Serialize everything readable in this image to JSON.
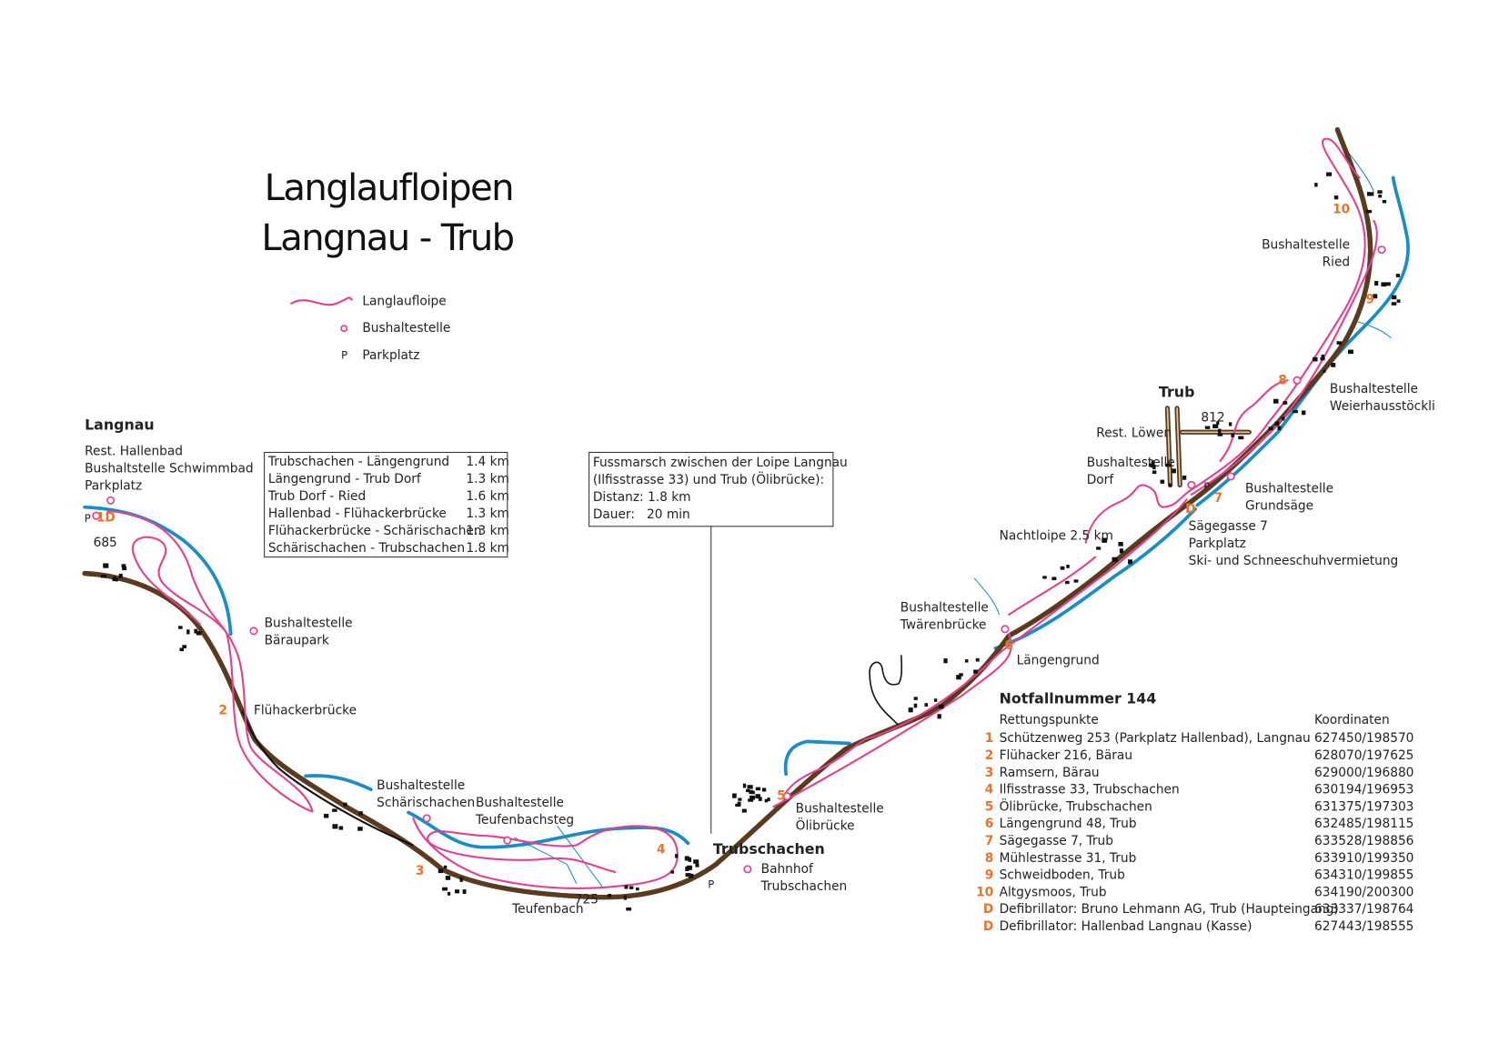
{
  "title": {
    "line1": "Langlaufloipen",
    "line2": "Langnau - Trub"
  },
  "legend": {
    "trail": "Langlaufloipe",
    "bus_stop": "Bushaltestelle",
    "parking_symbol": "P",
    "parking": "Parkplatz"
  },
  "distances": [
    [
      "Trubschachen - Längengrund",
      "1.4 km"
    ],
    [
      "Längengrund - Trub Dorf",
      "1.3 km"
    ],
    [
      "Trub Dorf - Ried",
      "1.6 km"
    ],
    [
      "Hallenbad - Flühackerbrücke",
      "1.3 km"
    ],
    [
      "Flühackerbrücke - Schärischachen",
      "1.3 km"
    ],
    [
      "Schärischachen - Trubschachen",
      "1.8 km"
    ]
  ],
  "walk_note": [
    "Fussmarsch zwischen der Loipe Langnau",
    "(Ilfisstrasse 33) und Trub (Ölibrücke):",
    "Distanz: 1.8 km",
    "Dauer:   20 min"
  ],
  "places": [
    [
      "Langnau"
    ],
    [
      "Rest. Hallenbad",
      "Bushaltstelle Schwimmbad",
      "Parkplatz"
    ],
    [
      "Bushaltestelle",
      "Bäraupark"
    ],
    [
      "Flühackerbrücke"
    ],
    [
      "Bushaltestelle",
      "Schärischachen"
    ],
    [
      "Bushaltestelle",
      "Teufenbachsteg"
    ],
    [
      "Teufenbach"
    ],
    [
      "Trubschachen"
    ],
    [
      "Bahnhof",
      "Trubschachen"
    ],
    [
      "Bushaltestelle",
      "Ölibrücke"
    ],
    [
      "Bushaltestelle",
      "Twärenbrücke"
    ],
    [
      "Längengrund"
    ],
    [
      "Nachtloipe 2.5 km"
    ],
    [
      "Bushaltestelle",
      "Dorf"
    ],
    [
      "Trub"
    ],
    [
      "Rest. Löwen"
    ],
    [
      "Bushaltestelle",
      "Grundsäge"
    ],
    [
      "Sägegasse 7",
      "Parkplatz",
      "Ski- und Schneeschuhvermietung"
    ],
    [
      "Bushaltestelle",
      "Weierhausstöckli"
    ],
    [
      "Bushaltestelle",
      "Ried"
    ]
  ],
  "markers": [
    "1D",
    "2",
    "3",
    "4",
    "5",
    "6",
    "7",
    "8",
    "9",
    "10",
    "D"
  ],
  "parking_markers": [
    "P",
    "P",
    "P"
  ],
  "elevations": [
    "685",
    "725",
    "812"
  ],
  "emergency": {
    "title": "Notfallnummer 144",
    "header": [
      "Rettungspunkte",
      "Koordinaten"
    ],
    "rows": [
      [
        "1",
        "Schützenweg 253 (Parkplatz Hallenbad), Langnau",
        "627450/198570"
      ],
      [
        "2",
        "Flühacker 216, Bärau",
        "628070/197625"
      ],
      [
        "3",
        "Ramsern, Bärau",
        "629000/196880"
      ],
      [
        "4",
        "Ilfisstrasse 33, Trubschachen",
        "630194/196953"
      ],
      [
        "5",
        "Ölibrücke, Trubschachen",
        "631375/197303"
      ],
      [
        "6",
        "Längengrund 48, Trub",
        "632485/198115"
      ],
      [
        "7",
        "Sägegasse 7, Trub",
        "633528/198856"
      ],
      [
        "8",
        "Mühlestrasse 31, Trub",
        "633910/199350"
      ],
      [
        "9",
        "Schweidboden, Trub",
        "634310/199855"
      ],
      [
        "10",
        "Altgysmoos, Trub",
        "634190/200300"
      ],
      [
        "D",
        "Defibrillator: Bruno Lehmann AG, Trub (Haupteingang)",
        "633337/198764"
      ],
      [
        "D",
        "Defibrillator: Hallenbad Langnau (Kasse)",
        "627443/198555"
      ]
    ]
  }
}
